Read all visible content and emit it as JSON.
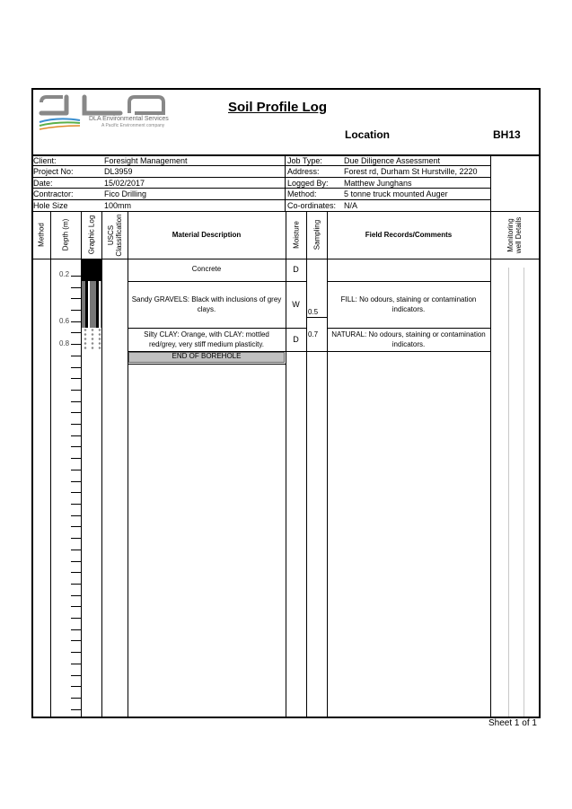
{
  "logo": {
    "text": "DLA",
    "company": "DLA Environmental Services",
    "tagline": "A Pacific Environment company"
  },
  "title": "Soil Profile Log",
  "location_label": "Location",
  "location_value": "BH13",
  "info_left": [
    {
      "label": "Client:",
      "value": "Foresight Management"
    },
    {
      "label": "Project No:",
      "value": "DL3959"
    },
    {
      "label": "Date:",
      "value": "15/02/2017"
    },
    {
      "label": "Contractor:",
      "value": "Fico Drilling"
    },
    {
      "label": "Hole Size",
      "value": "100mm"
    }
  ],
  "info_right": [
    {
      "label": "Job Type:",
      "value": "Due Diligence Assessment"
    },
    {
      "label": "Address:",
      "value": "Forest rd, Durham St Hurstville, 2220"
    },
    {
      "label": "Logged By:",
      "value": "Matthew Junghans"
    },
    {
      "label": "Method:",
      "value": "5 tonne truck mounted Auger"
    },
    {
      "label": "Co-ordinates:",
      "value": "N/A"
    }
  ],
  "columns": {
    "method": "Method",
    "depth": "Depth (m)",
    "graphic": "Graphic Log",
    "uscs_1": "USCS",
    "uscs_2": "Classification",
    "material": "Material Description",
    "moisture": "Moisture",
    "sampling": "Sampling",
    "field": "Field Records/Comments",
    "monitoring_1": "Monitoring",
    "monitoring_2": "well Details"
  },
  "depth_labels": [
    "0.2",
    "0.6",
    "0.8"
  ],
  "layers": [
    {
      "material": "Concrete",
      "moisture": "D",
      "field": "",
      "pattern": "solid-black"
    },
    {
      "material": "Sandy GRAVELS: Black with inclusions of grey clays.",
      "moisture": "W",
      "field": "FILL: No odours, staining or contamination indicators.",
      "pattern": "gravel"
    },
    {
      "material": "Silty CLAY: Orange, with CLAY: mottled red/grey, very stiff medium plasticity.",
      "moisture": "D",
      "field": "NATURAL: No odours, staining or contamination indicators.",
      "pattern": "dots"
    }
  ],
  "samples": [
    "0.5",
    "0.7"
  ],
  "end_label": "END OF BOREHOLE",
  "sheet": "Sheet 1 of 1",
  "colors": {
    "end_fill": "#c0c0c0",
    "gravel_fill": "#777777",
    "well_lines": "#c8c8c8"
  }
}
